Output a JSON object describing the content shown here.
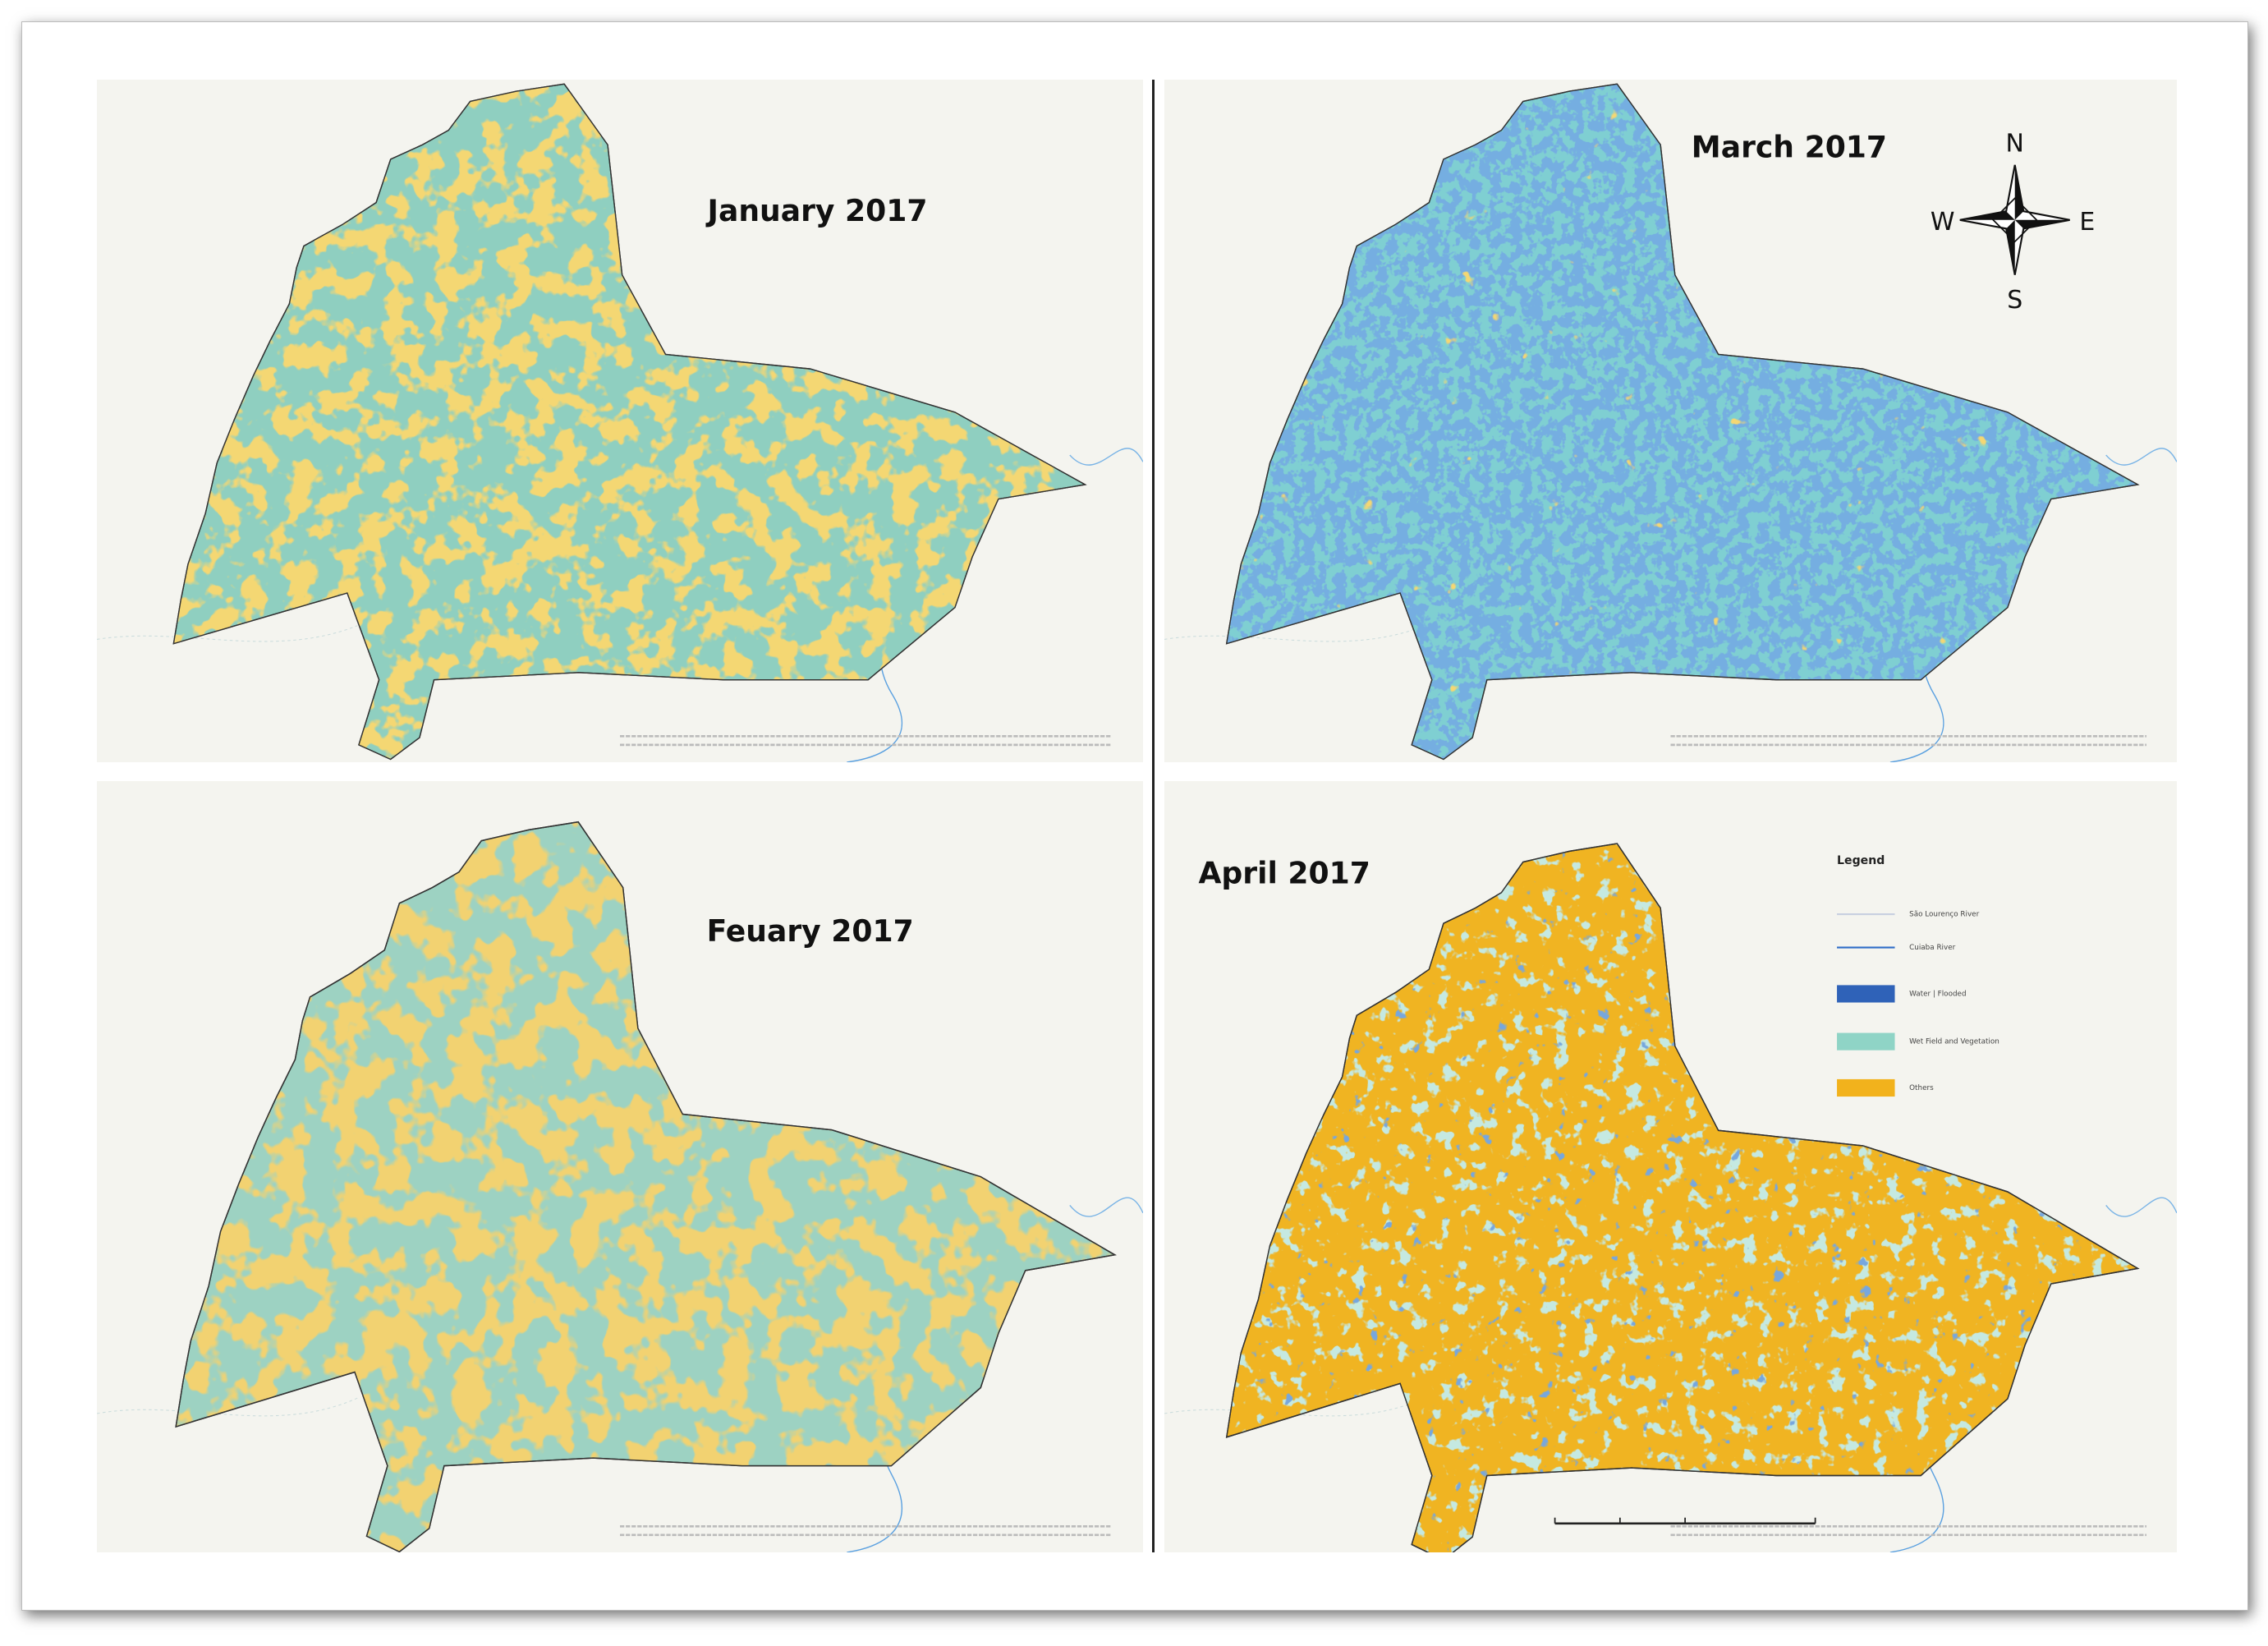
{
  "panels": [
    {
      "title": "January 2017"
    },
    {
      "title": "March 2017"
    },
    {
      "title": "Feuary 2017"
    },
    {
      "title": "April 2017"
    }
  ],
  "compass": {
    "north": "N",
    "south": "S",
    "east": "E",
    "west": "W"
  },
  "legend": {
    "title": "Legend",
    "items": [
      {
        "label": "São Lourenço River"
      },
      {
        "label": "Cuiaba River"
      },
      {
        "label": "Water | Flooded"
      },
      {
        "label": "Wet Field and Vegetation"
      },
      {
        "label": "Others"
      }
    ]
  }
}
